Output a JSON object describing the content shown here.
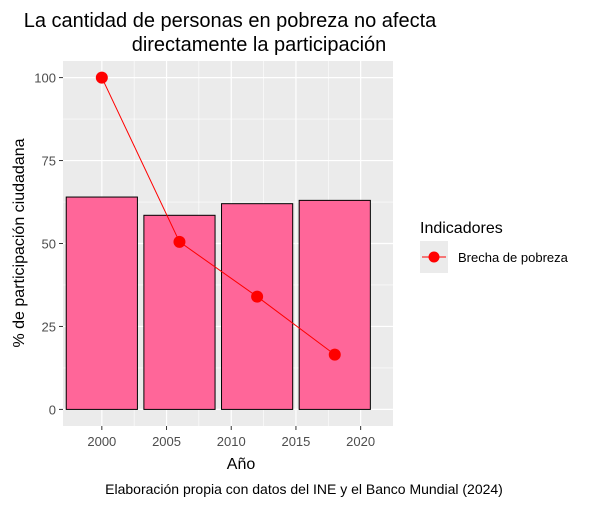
{
  "chart_data": {
    "type": "bar",
    "title_lines": [
      "La cantidad de personas en pobreza no afecta",
      "directamente la participación"
    ],
    "xlabel": "Año",
    "ylabel": "% de participación ciudadana",
    "caption": "Elaboración propia con datos del INE y el Banco Mundial (2024)",
    "xlim": [
      1997,
      2022.5
    ],
    "ylim": [
      -5,
      105
    ],
    "x_ticks": [
      2000,
      2005,
      2010,
      2015,
      2020
    ],
    "y_ticks": [
      0,
      25,
      50,
      75,
      100
    ],
    "grid": true,
    "bars": {
      "x": [
        2000,
        2006,
        2012,
        2018
      ],
      "width": 5.5,
      "values": [
        64,
        58.5,
        62,
        63
      ],
      "fill": "#ff6699",
      "stroke": "#000000"
    },
    "line_series": {
      "name": "Brecha de pobreza",
      "x": [
        2000,
        2006,
        2012,
        2018
      ],
      "values": [
        100,
        50.5,
        34,
        16.5
      ],
      "color": "#ff0000"
    },
    "legend": {
      "title": "Indicadores",
      "position": "right",
      "entries": [
        "Brecha de pobreza"
      ]
    },
    "panel_background": "#ebebeb",
    "grid_color": "#ffffff"
  }
}
